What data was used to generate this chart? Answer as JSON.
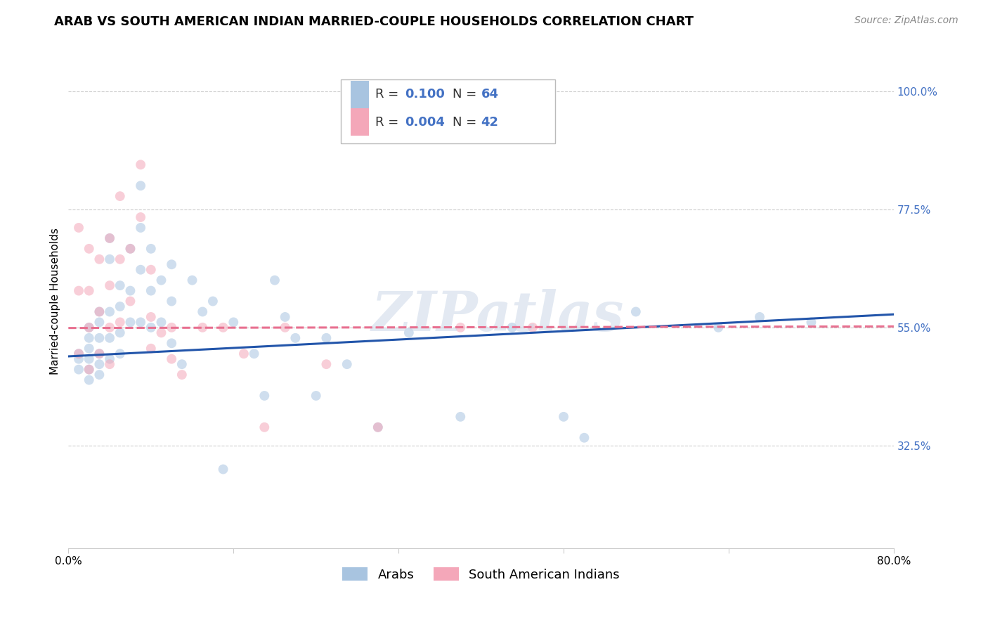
{
  "title": "ARAB VS SOUTH AMERICAN INDIAN MARRIED-COUPLE HOUSEHOLDS CORRELATION CHART",
  "source": "Source: ZipAtlas.com",
  "ylabel": "Married-couple Households",
  "ytick_labels": [
    "100.0%",
    "77.5%",
    "55.0%",
    "32.5%"
  ],
  "ytick_values": [
    1.0,
    0.775,
    0.55,
    0.325
  ],
  "xlim": [
    0.0,
    0.8
  ],
  "ylim": [
    0.13,
    1.07
  ],
  "watermark": "ZIPatlas",
  "arab_x": [
    0.01,
    0.01,
    0.01,
    0.02,
    0.02,
    0.02,
    0.02,
    0.02,
    0.02,
    0.03,
    0.03,
    0.03,
    0.03,
    0.03,
    0.03,
    0.04,
    0.04,
    0.04,
    0.04,
    0.04,
    0.05,
    0.05,
    0.05,
    0.05,
    0.06,
    0.06,
    0.06,
    0.07,
    0.07,
    0.07,
    0.07,
    0.08,
    0.08,
    0.08,
    0.09,
    0.09,
    0.1,
    0.1,
    0.1,
    0.11,
    0.12,
    0.13,
    0.14,
    0.15,
    0.16,
    0.18,
    0.19,
    0.2,
    0.21,
    0.22,
    0.24,
    0.25,
    0.27,
    0.3,
    0.33,
    0.38,
    0.43,
    0.48,
    0.5,
    0.55,
    0.63,
    0.67,
    0.72
  ],
  "arab_y": [
    0.5,
    0.49,
    0.47,
    0.55,
    0.53,
    0.51,
    0.49,
    0.47,
    0.45,
    0.58,
    0.56,
    0.53,
    0.5,
    0.48,
    0.46,
    0.72,
    0.68,
    0.58,
    0.53,
    0.49,
    0.63,
    0.59,
    0.54,
    0.5,
    0.7,
    0.62,
    0.56,
    0.82,
    0.74,
    0.66,
    0.56,
    0.7,
    0.62,
    0.55,
    0.64,
    0.56,
    0.67,
    0.6,
    0.52,
    0.48,
    0.64,
    0.58,
    0.6,
    0.28,
    0.56,
    0.5,
    0.42,
    0.64,
    0.57,
    0.53,
    0.42,
    0.53,
    0.48,
    0.36,
    0.54,
    0.38,
    0.55,
    0.38,
    0.34,
    0.58,
    0.55,
    0.57,
    0.56
  ],
  "sai_x": [
    0.01,
    0.01,
    0.01,
    0.02,
    0.02,
    0.02,
    0.02,
    0.03,
    0.03,
    0.03,
    0.04,
    0.04,
    0.04,
    0.04,
    0.05,
    0.05,
    0.05,
    0.06,
    0.06,
    0.07,
    0.07,
    0.08,
    0.08,
    0.08,
    0.09,
    0.1,
    0.1,
    0.11,
    0.13,
    0.15,
    0.17,
    0.19,
    0.21,
    0.25,
    0.3,
    0.38,
    0.45
  ],
  "sai_y": [
    0.74,
    0.62,
    0.5,
    0.7,
    0.62,
    0.55,
    0.47,
    0.68,
    0.58,
    0.5,
    0.72,
    0.63,
    0.55,
    0.48,
    0.8,
    0.68,
    0.56,
    0.7,
    0.6,
    0.86,
    0.76,
    0.66,
    0.57,
    0.51,
    0.54,
    0.55,
    0.49,
    0.46,
    0.55,
    0.55,
    0.5,
    0.36,
    0.55,
    0.48,
    0.36,
    0.55,
    0.55
  ],
  "arab_line_x": [
    0.0,
    0.8
  ],
  "arab_line_y": [
    0.495,
    0.575
  ],
  "sai_line_x": [
    0.0,
    0.8
  ],
  "sai_line_y": [
    0.549,
    0.552
  ],
  "background_color": "#ffffff",
  "grid_color": "#cccccc",
  "arab_scatter_color": "#a8c4e0",
  "arab_line_color": "#2255aa",
  "sai_scatter_color": "#f4a7b9",
  "sai_line_color": "#e87090",
  "title_fontsize": 13,
  "axis_label_fontsize": 11,
  "tick_fontsize": 11,
  "legend_fontsize": 13,
  "source_fontsize": 10,
  "scatter_size": 100,
  "scatter_alpha": 0.55,
  "line_width": 2.2
}
